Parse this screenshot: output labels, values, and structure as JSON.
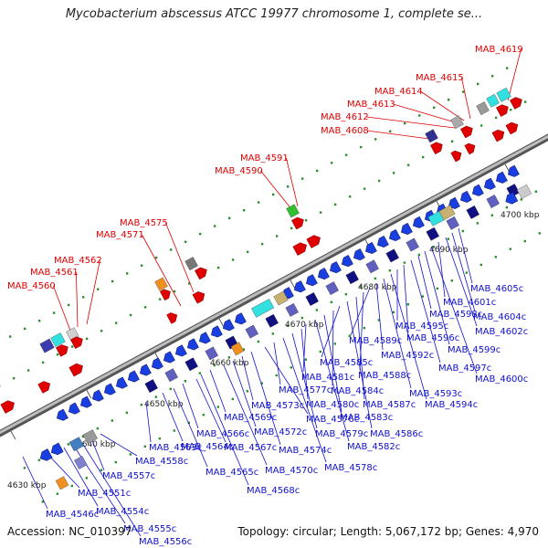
{
  "title": "Mycobacterium abscessus ATCC 19977 chromosome 1, complete se...",
  "accession": "Accession: NC_010397",
  "summary": "Topology: circular; Length: 5,067,172 bp; Genes: 4,970",
  "ticks": [
    "4630 kbp",
    "4640 kbp",
    "4650 kbp",
    "4660 kbp",
    "4670 kbp",
    "4680 kbp",
    "4690 kbp",
    "4700 kbp"
  ],
  "forward_labels": [
    "MAB_4560",
    "MAB_4561",
    "MAB_4562",
    "MAB_4571",
    "MAB_4575",
    "MAB_4590",
    "MAB_4591",
    "MAB_4608",
    "MAB_4612",
    "MAB_4613",
    "MAB_4614",
    "MAB_4615",
    "MAB_4619"
  ],
  "reverse_labels": [
    "MAB_4546c",
    "MAB_4551c",
    "MAB_4554c",
    "MAB_4555c",
    "MAB_4556c",
    "MAB_4557c",
    "MAB_4558c",
    "MAB_4563c",
    "MAB_4564c",
    "MAB_4565c",
    "MAB_4566c",
    "MAB_4567c",
    "MAB_4568c",
    "MAB_4569c",
    "MAB_4570c",
    "MAB_4572c",
    "MAB_4573c",
    "MAB_4574c",
    "MAB_4576c",
    "MAB_4577c",
    "MAB_4578c",
    "MAB_4579c",
    "MAB_4580c",
    "MAB_4581c",
    "MAB_4582c",
    "MAB_4583c",
    "MAB_4584c",
    "MAB_4585c",
    "MAB_4586c",
    "MAB_4587c",
    "MAB_4588c",
    "MAB_4589c",
    "MAB_4592c",
    "MAB_4593c",
    "MAB_4594c",
    "MAB_4595c",
    "MAB_4596c",
    "MAB_4597c",
    "MAB_4598c",
    "MAB_4599c",
    "MAB_4600c",
    "MAB_4601c",
    "MAB_4602c",
    "MAB_4604c",
    "MAB_4605c"
  ],
  "colors": {
    "forward": "#e00000",
    "reverse": "#1010cc",
    "backbone": "#888888"
  }
}
